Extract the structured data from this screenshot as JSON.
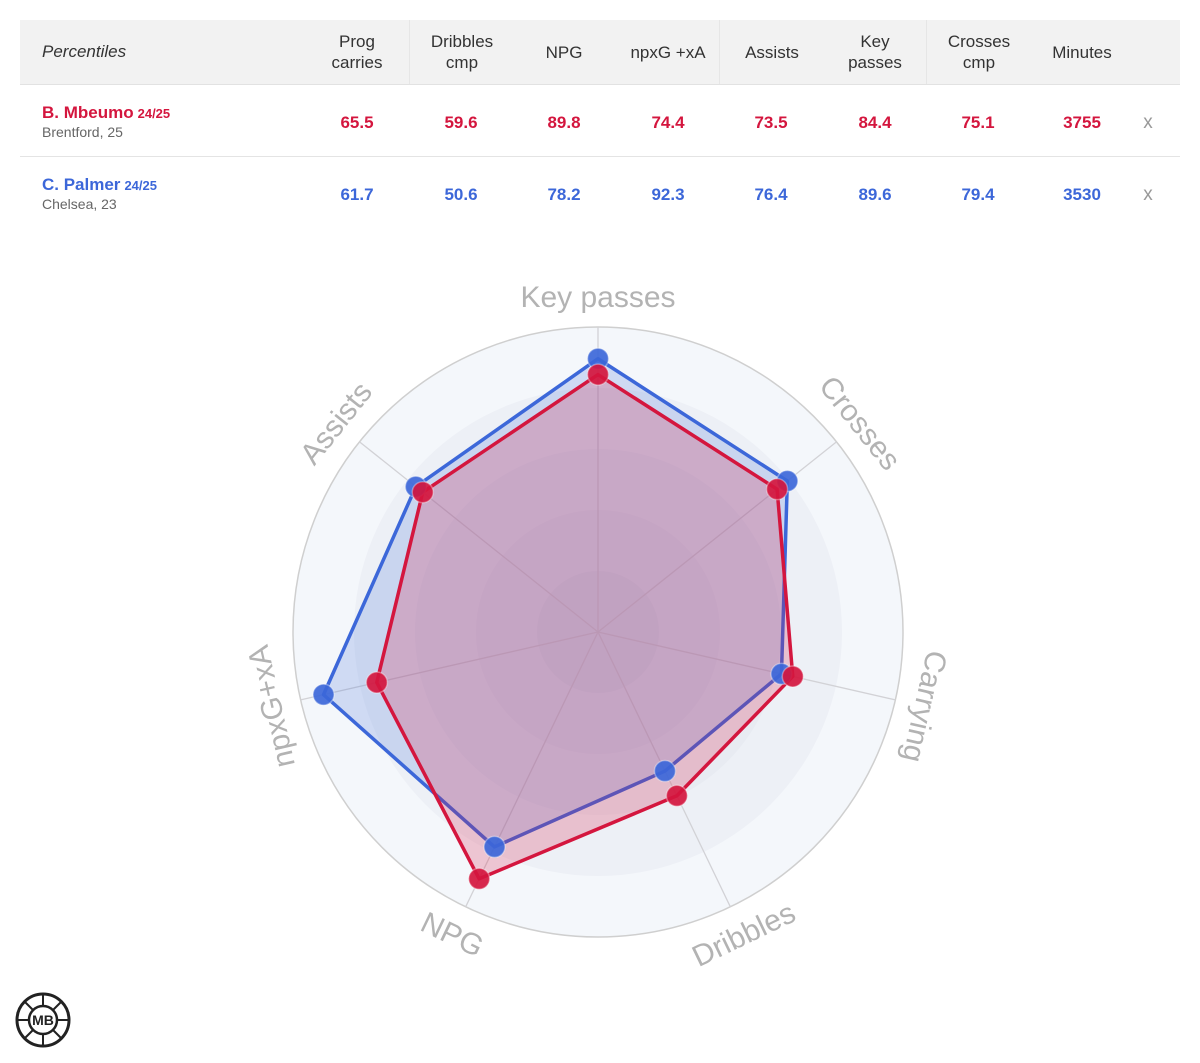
{
  "table": {
    "header_label": "Percentiles",
    "columns": [
      "Prog\ncarries",
      "Dribbles\ncmp",
      "NPG",
      "npxG +xA",
      "Assists",
      "Key\npasses",
      "Crosses\ncmp",
      "Minutes"
    ],
    "remove_label": "x",
    "players": [
      {
        "name": "B. Mbeumo",
        "season": "24/25",
        "club": "Brentford, 25",
        "color": "#d4163e",
        "values": [
          "65.5",
          "59.6",
          "89.8",
          "74.4",
          "73.5",
          "84.4",
          "75.1",
          "3755"
        ]
      },
      {
        "name": "C. Palmer",
        "season": "24/25",
        "club": "Chelsea, 23",
        "color": "#3c67d9",
        "values": [
          "61.7",
          "50.6",
          "78.2",
          "92.3",
          "76.4",
          "89.6",
          "79.4",
          "3530"
        ]
      }
    ]
  },
  "chart_data": {
    "type": "radar",
    "axes": [
      "Key passes",
      "Crosses",
      "Carrying",
      "Dribbles",
      "NPG",
      "npxG+xA",
      "Assists"
    ],
    "range": [
      0,
      100
    ],
    "series": [
      {
        "name": "B. Mbeumo",
        "color": "#d4163e",
        "values": [
          84.4,
          75.1,
          65.5,
          59.6,
          89.8,
          74.4,
          73.5
        ]
      },
      {
        "name": "C. Palmer",
        "color": "#3c67d9",
        "values": [
          89.6,
          79.4,
          61.7,
          50.6,
          78.2,
          92.3,
          76.4
        ]
      }
    ]
  },
  "logo": {
    "text": "MB"
  }
}
